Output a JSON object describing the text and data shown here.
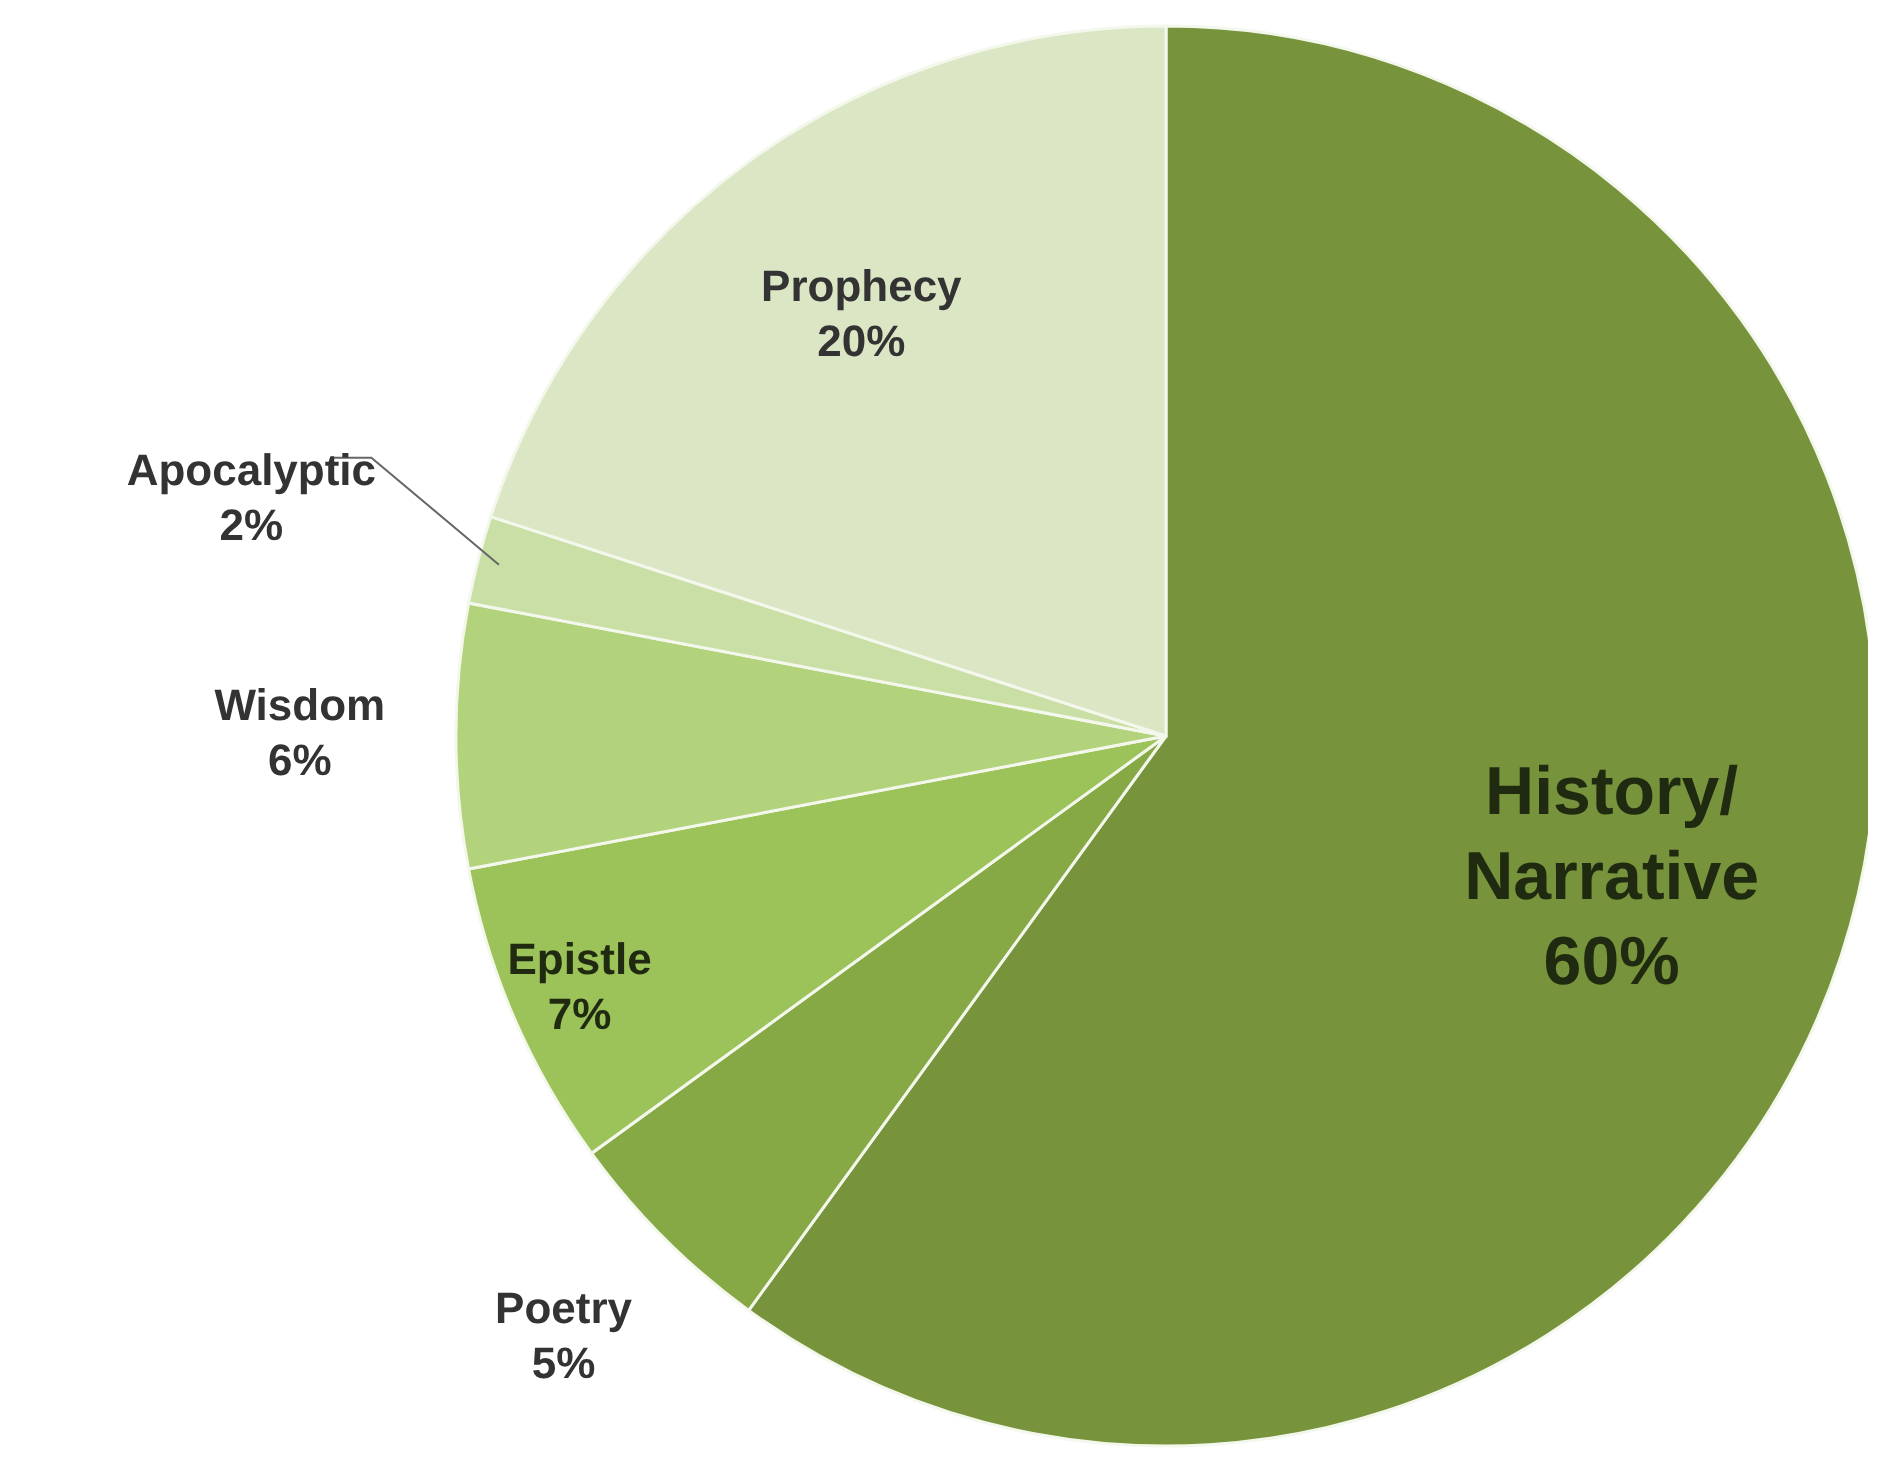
{
  "chart_data": {
    "type": "pie",
    "categories": [
      "History/ Narrative",
      "Poetry",
      "Epistle",
      "Wisdom",
      "Apocalyptic",
      "Prophecy"
    ],
    "values": [
      60,
      5,
      7,
      6,
      2,
      20
    ],
    "value_labels": [
      "60%",
      "5%",
      "7%",
      "6%",
      "2%",
      "20%"
    ],
    "colors": [
      "#77933c",
      "#86a845",
      "#9cc25a",
      "#b3d27c",
      "#c9dfa5",
      "#dbe6c4"
    ]
  }
}
